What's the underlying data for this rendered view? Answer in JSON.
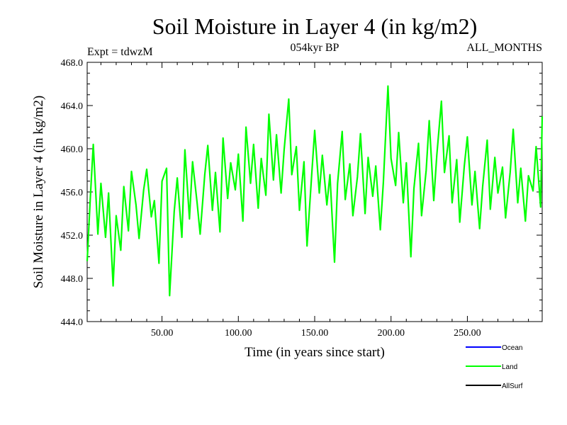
{
  "chart_data": {
    "type": "line",
    "title": "Soil Moisture in Layer 4 (in kg/m2)",
    "subtitle": "054kyr BP",
    "left_note": "Expt = tdwzM",
    "right_note": "ALL_MONTHS",
    "xlabel": "Time (in years since start)",
    "ylabel": "Soil Moisture in Layer 4 (in kg/m2)",
    "xlim": [
      1,
      299
    ],
    "ylim": [
      444.0,
      468.0
    ],
    "x_ticks": [
      50,
      100,
      150,
      200,
      250
    ],
    "x_tick_labels": [
      "50.00",
      "100.00",
      "150.00",
      "200.00",
      "250.00"
    ],
    "y_ticks": [
      444,
      448,
      452,
      456,
      460,
      464,
      468
    ],
    "y_tick_labels": [
      "444.0",
      "448.0",
      "452.0",
      "456.0",
      "460.0",
      "464.0",
      "468.0"
    ],
    "legend_position": "bottom-right",
    "series": [
      {
        "name": "Ocean",
        "color": "#0000ff",
        "x": [],
        "y": []
      },
      {
        "name": "Land",
        "color": "#00ff00",
        "x": [
          1,
          3,
          5,
          8,
          10,
          13,
          15,
          18,
          20,
          23,
          25,
          28,
          30,
          33,
          35,
          38,
          40,
          43,
          45,
          48,
          50,
          53,
          55,
          58,
          60,
          63,
          65,
          68,
          70,
          73,
          75,
          78,
          80,
          83,
          85,
          88,
          90,
          93,
          95,
          98,
          100,
          103,
          105,
          108,
          110,
          113,
          115,
          118,
          120,
          123,
          125,
          128,
          130,
          133,
          135,
          138,
          140,
          143,
          145,
          148,
          150,
          153,
          155,
          158,
          160,
          163,
          165,
          168,
          170,
          173,
          175,
          178,
          180,
          183,
          185,
          188,
          190,
          193,
          195,
          198,
          200,
          203,
          205,
          208,
          210,
          213,
          215,
          218,
          220,
          223,
          225,
          228,
          230,
          233,
          235,
          238,
          240,
          243,
          245,
          248,
          250,
          253,
          255,
          258,
          260,
          263,
          265,
          268,
          270,
          273,
          275,
          278,
          280,
          283,
          285,
          288,
          290,
          293,
          295,
          298,
          299
        ],
        "y": [
          449.6,
          455.3,
          460.4,
          452.1,
          456.8,
          451.8,
          455.9,
          447.3,
          453.8,
          450.6,
          456.5,
          452.4,
          457.9,
          454.8,
          451.7,
          456.2,
          458.1,
          453.7,
          455.2,
          449.4,
          457.0,
          458.2,
          446.4,
          454.2,
          457.3,
          451.8,
          459.9,
          453.5,
          458.8,
          455.0,
          452.1,
          457.6,
          460.3,
          454.3,
          457.8,
          452.3,
          461.0,
          455.4,
          458.7,
          456.2,
          459.5,
          453.3,
          462.0,
          456.8,
          460.4,
          454.5,
          459.1,
          455.7,
          463.2,
          457.1,
          461.3,
          455.9,
          459.9,
          464.6,
          457.6,
          460.2,
          454.3,
          458.8,
          451.0,
          457.5,
          461.7,
          455.9,
          459.4,
          454.8,
          457.6,
          449.5,
          456.8,
          461.6,
          455.3,
          458.6,
          453.8,
          457.4,
          461.4,
          454.0,
          459.2,
          455.6,
          458.4,
          452.5,
          456.9,
          465.8,
          459.1,
          456.6,
          461.5,
          455.0,
          458.7,
          450.0,
          456.3,
          460.5,
          453.8,
          458.0,
          462.6,
          455.2,
          459.4,
          464.4,
          457.8,
          461.2,
          455.0,
          459.0,
          453.2,
          458.4,
          461.1,
          454.8,
          457.9,
          452.6,
          456.5,
          460.8,
          454.4,
          459.2,
          455.9,
          458.3,
          453.6,
          457.8,
          461.8,
          455.0,
          458.2,
          453.3,
          457.5,
          456.1,
          460.2,
          454.6,
          463.0
        ]
      },
      {
        "name": "AllSurf",
        "color": "#000000",
        "x": [],
        "y": []
      }
    ]
  }
}
